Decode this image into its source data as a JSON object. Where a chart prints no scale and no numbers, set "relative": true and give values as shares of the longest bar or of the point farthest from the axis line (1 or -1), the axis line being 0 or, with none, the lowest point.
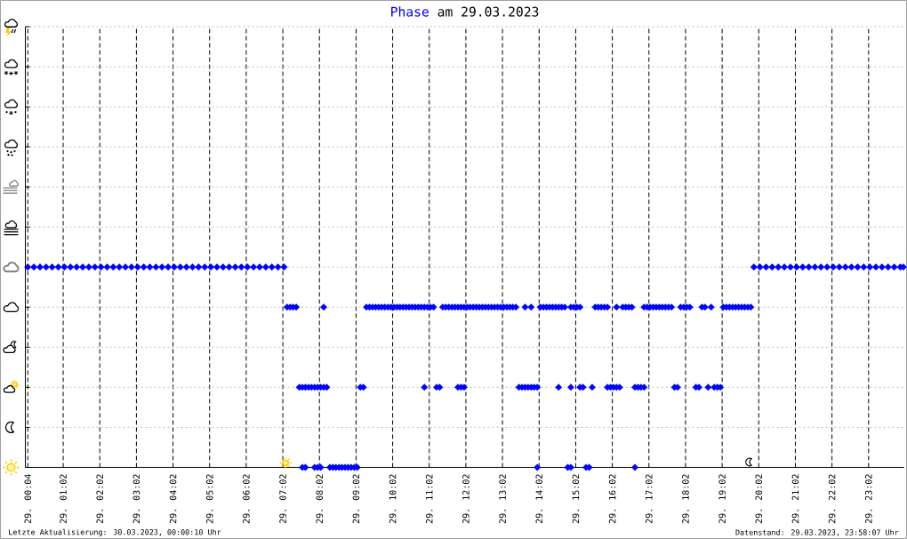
{
  "chart_data": {
    "type": "scatter",
    "title": "am 29.03.2023",
    "annotations": [
      "Letzte Aktualisierung: 30.03.2023, 00:00:10 Uhr",
      "Datenstand: 29.03.2023, 23:58:07 Uhr"
    ],
    "xlim": [
      "2023-03-29T00:00",
      "2023-03-30T00:00"
    ],
    "xticks": [
      {
        "value": "2023-03-29T00:04",
        "label": "29. 00:04"
      },
      {
        "value": "2023-03-29T01:02",
        "label": "29. 01:02"
      },
      {
        "value": "2023-03-29T02:02",
        "label": "29. 02:02"
      },
      {
        "value": "2023-03-29T03:02",
        "label": "29. 03:02"
      },
      {
        "value": "2023-03-29T04:02",
        "label": "29. 04:02"
      },
      {
        "value": "2023-03-29T05:02",
        "label": "29. 05:02"
      },
      {
        "value": "2023-03-29T06:02",
        "label": "29. 06:02"
      },
      {
        "value": "2023-03-29T07:02",
        "label": "29. 07:02"
      },
      {
        "value": "2023-03-29T08:02",
        "label": "29. 08:02"
      },
      {
        "value": "2023-03-29T09:02",
        "label": "29. 09:02"
      },
      {
        "value": "2023-03-29T10:02",
        "label": "29. 10:02"
      },
      {
        "value": "2023-03-29T11:02",
        "label": "29. 11:02"
      },
      {
        "value": "2023-03-29T12:02",
        "label": "29. 12:02"
      },
      {
        "value": "2023-03-29T13:02",
        "label": "29. 13:02"
      },
      {
        "value": "2023-03-29T14:02",
        "label": "29. 14:02"
      },
      {
        "value": "2023-03-29T15:02",
        "label": "29. 15:02"
      },
      {
        "value": "2023-03-29T16:02",
        "label": "29. 16:02"
      },
      {
        "value": "2023-03-29T17:02",
        "label": "29. 17:02"
      },
      {
        "value": "2023-03-29T18:02",
        "label": "29. 18:02"
      },
      {
        "value": "2023-03-29T19:02",
        "label": "29. 19:02"
      },
      {
        "value": "2023-03-29T20:02",
        "label": "29. 20:02"
      },
      {
        "value": "2023-03-29T21:02",
        "label": "29. 21:02"
      },
      {
        "value": "2023-03-29T22:02",
        "label": "29. 22:02"
      },
      {
        "value": "2023-03-29T23:02",
        "label": "29. 23:02"
      }
    ],
    "relative": true,
    "grid": true,
    "marker": "diamond",
    "series": [
      {
        "name": "Phase",
        "color": "#0000ff",
        "x": [
          "2023-03-29T00:04",
          "2023-03-29T00:14",
          "2023-03-29T00:24",
          "2023-03-29T00:34",
          "2023-03-29T00:44",
          "2023-03-29T00:54",
          "2023-03-29T01:04",
          "2023-03-29T01:14",
          "2023-03-29T01:24",
          "2023-03-29T01:34",
          "2023-03-29T01:44",
          "2023-03-29T01:54",
          "2023-03-29T02:04",
          "2023-03-29T02:14",
          "2023-03-29T02:24",
          "2023-03-29T02:34",
          "2023-03-29T02:44",
          "2023-03-29T02:54",
          "2023-03-29T03:04",
          "2023-03-29T03:14",
          "2023-03-29T03:24",
          "2023-03-29T03:34",
          "2023-03-29T03:44",
          "2023-03-29T03:54",
          "2023-03-29T04:04",
          "2023-03-29T04:14",
          "2023-03-29T04:24",
          "2023-03-29T04:34",
          "2023-03-29T04:44",
          "2023-03-29T04:54",
          "2023-03-29T05:04",
          "2023-03-29T05:14",
          "2023-03-29T05:24",
          "2023-03-29T05:34",
          "2023-03-29T05:44",
          "2023-03-29T05:54",
          "2023-03-29T06:04",
          "2023-03-29T06:14",
          "2023-03-29T06:24",
          "2023-03-29T06:34",
          "2023-03-29T06:44",
          "2023-03-29T06:54",
          "2023-03-29T07:04",
          "2023-03-29T07:09",
          "2023-03-29T07:14",
          "2023-03-29T07:19",
          "2023-03-29T07:24",
          "2023-03-29T07:29",
          "2023-03-29T07:34",
          "2023-03-29T07:34",
          "2023-03-29T07:39",
          "2023-03-29T07:39",
          "2023-03-29T07:44",
          "2023-03-29T07:49",
          "2023-03-29T07:54",
          "2023-03-29T07:54",
          "2023-03-29T07:59",
          "2023-03-29T07:59",
          "2023-03-29T08:04",
          "2023-03-29T08:04",
          "2023-03-29T08:09",
          "2023-03-29T08:09",
          "2023-03-29T08:14",
          "2023-03-29T08:19",
          "2023-03-29T08:24",
          "2023-03-29T08:29",
          "2023-03-29T08:34",
          "2023-03-29T08:39",
          "2023-03-29T08:44",
          "2023-03-29T08:49",
          "2023-03-29T08:54",
          "2023-03-29T08:59",
          "2023-03-29T09:04",
          "2023-03-29T09:09",
          "2023-03-29T09:14",
          "2023-03-29T09:19",
          "2023-03-29T09:24",
          "2023-03-29T09:29",
          "2023-03-29T09:34",
          "2023-03-29T09:39",
          "2023-03-29T09:44",
          "2023-03-29T09:49",
          "2023-03-29T09:54",
          "2023-03-29T09:59",
          "2023-03-29T10:04",
          "2023-03-29T10:09",
          "2023-03-29T10:14",
          "2023-03-29T10:19",
          "2023-03-29T10:24",
          "2023-03-29T10:29",
          "2023-03-29T10:34",
          "2023-03-29T10:39",
          "2023-03-29T10:44",
          "2023-03-29T10:49",
          "2023-03-29T10:54",
          "2023-03-29T10:54",
          "2023-03-29T10:59",
          "2023-03-29T11:04",
          "2023-03-29T11:09",
          "2023-03-29T11:14",
          "2023-03-29T11:19",
          "2023-03-29T11:24",
          "2023-03-29T11:29",
          "2023-03-29T11:34",
          "2023-03-29T11:39",
          "2023-03-29T11:44",
          "2023-03-29T11:49",
          "2023-03-29T11:49",
          "2023-03-29T11:54",
          "2023-03-29T11:54",
          "2023-03-29T11:59",
          "2023-03-29T11:59",
          "2023-03-29T12:04",
          "2023-03-29T12:09",
          "2023-03-29T12:14",
          "2023-03-29T12:19",
          "2023-03-29T12:24",
          "2023-03-29T12:29",
          "2023-03-29T12:34",
          "2023-03-29T12:39",
          "2023-03-29T12:44",
          "2023-03-29T12:49",
          "2023-03-29T12:54",
          "2023-03-29T12:59",
          "2023-03-29T13:04",
          "2023-03-29T13:09",
          "2023-03-29T13:14",
          "2023-03-29T13:19",
          "2023-03-29T13:24",
          "2023-03-29T13:29",
          "2023-03-29T13:34",
          "2023-03-29T13:39",
          "2023-03-29T13:39",
          "2023-03-29T13:44",
          "2023-03-29T13:49",
          "2023-03-29T13:49",
          "2023-03-29T13:54",
          "2023-03-29T13:59",
          "2023-03-29T13:59",
          "2023-03-29T14:04",
          "2023-03-29T14:09",
          "2023-03-29T14:14",
          "2023-03-29T14:19",
          "2023-03-29T14:24",
          "2023-03-29T14:29",
          "2023-03-29T14:34",
          "2023-03-29T14:34",
          "2023-03-29T14:39",
          "2023-03-29T14:44",
          "2023-03-29T14:49",
          "2023-03-29T14:54",
          "2023-03-29T14:54",
          "2023-03-29T14:54",
          "2023-03-29T14:59",
          "2023-03-29T15:04",
          "2023-03-29T15:09",
          "2023-03-29T15:09",
          "2023-03-29T15:14",
          "2023-03-29T15:19",
          "2023-03-29T15:24",
          "2023-03-29T15:29",
          "2023-03-29T15:34",
          "2023-03-29T15:39",
          "2023-03-29T15:44",
          "2023-03-29T15:49",
          "2023-03-29T15:54",
          "2023-03-29T15:54",
          "2023-03-29T15:59",
          "2023-03-29T16:04",
          "2023-03-29T16:09",
          "2023-03-29T16:09",
          "2023-03-29T16:14",
          "2023-03-29T16:19",
          "2023-03-29T16:24",
          "2023-03-29T16:29",
          "2023-03-29T16:34",
          "2023-03-29T16:39",
          "2023-03-29T16:39",
          "2023-03-29T16:44",
          "2023-03-29T16:49",
          "2023-03-29T16:54",
          "2023-03-29T16:54",
          "2023-03-29T16:59",
          "2023-03-29T17:04",
          "2023-03-29T17:09",
          "2023-03-29T17:14",
          "2023-03-29T17:19",
          "2023-03-29T17:24",
          "2023-03-29T17:29",
          "2023-03-29T17:34",
          "2023-03-29T17:39",
          "2023-03-29T17:44",
          "2023-03-29T17:49",
          "2023-03-29T17:54",
          "2023-03-29T17:59",
          "2023-03-29T18:04",
          "2023-03-29T18:09",
          "2023-03-29T18:19",
          "2023-03-29T18:24",
          "2023-03-29T18:29",
          "2023-03-29T18:34",
          "2023-03-29T18:39",
          "2023-03-29T18:44",
          "2023-03-29T18:49",
          "2023-03-29T18:54",
          "2023-03-29T18:59",
          "2023-03-29T19:04",
          "2023-03-29T19:09",
          "2023-03-29T19:14",
          "2023-03-29T19:19",
          "2023-03-29T19:24",
          "2023-03-29T19:29",
          "2023-03-29T19:34",
          "2023-03-29T19:39",
          "2023-03-29T19:44",
          "2023-03-29T19:49",
          "2023-03-29T19:54",
          "2023-03-29T20:04",
          "2023-03-29T20:14",
          "2023-03-29T20:24",
          "2023-03-29T20:34",
          "2023-03-29T20:44",
          "2023-03-29T20:54",
          "2023-03-29T21:04",
          "2023-03-29T21:14",
          "2023-03-29T21:24",
          "2023-03-29T21:34",
          "2023-03-29T21:44",
          "2023-03-29T21:54",
          "2023-03-29T22:04",
          "2023-03-29T22:14",
          "2023-03-29T22:24",
          "2023-03-29T22:34",
          "2023-03-29T22:44",
          "2023-03-29T22:54",
          "2023-03-29T23:04",
          "2023-03-29T23:14",
          "2023-03-29T23:24",
          "2023-03-29T23:34",
          "2023-03-29T23:44",
          "2023-03-29T23:54",
          "2023-03-29T23:59"
        ],
        "values": [
          1,
          1,
          1,
          1,
          1,
          1,
          1,
          1,
          1,
          1,
          1,
          1,
          1,
          1,
          1,
          1,
          1,
          1,
          1,
          1,
          1,
          1,
          1,
          1,
          1,
          1,
          1,
          1,
          1,
          1,
          1,
          1,
          1,
          1,
          1,
          1,
          1,
          1,
          1,
          1,
          1,
          1,
          1,
          0.8,
          0.8,
          0.8,
          0.8,
          0.4,
          0.4,
          0,
          0.4,
          0,
          0.4,
          0.4,
          0.4,
          0,
          0.4,
          0,
          0.4,
          0,
          0.4,
          0.8,
          0.4,
          0,
          0,
          0,
          0,
          0,
          0,
          0,
          0,
          0,
          0,
          0.4,
          0.4,
          0.8,
          0.8,
          0.8,
          0.8,
          0.8,
          0.8,
          0.8,
          0.8,
          0.8,
          0.8,
          0.8,
          0.8,
          0.8,
          0.8,
          0.8,
          0.8,
          0.8,
          0.8,
          0.8,
          0.8,
          0.4,
          0.8,
          0.8,
          0.8,
          0.4,
          0.4,
          0.8,
          0.8,
          0.8,
          0.8,
          0.8,
          0.8,
          0.4,
          0.8,
          0.4,
          0.8,
          0.4,
          0.8,
          0.8,
          0.8,
          0.8,
          0.8,
          0.8,
          0.8,
          0.8,
          0.8,
          0.8,
          0.8,
          0.8,
          0.8,
          0.8,
          0.8,
          0.8,
          0.8,
          0.4,
          0.4,
          0.4,
          0.8,
          0.4,
          0.4,
          0.8,
          0.4,
          0.4,
          0,
          0.8,
          0.8,
          0.8,
          0.8,
          0.8,
          0.8,
          0.8,
          0.4,
          0.8,
          0.8,
          0,
          0.8,
          0.4,
          0,
          0.8,
          0.8,
          0.8,
          0.4,
          0.4,
          0,
          0,
          0.4,
          0.8,
          0.8,
          0.8,
          0.8,
          0.8,
          0.4,
          0.4,
          0.4,
          0.4,
          0.8,
          0.4,
          0.8,
          0.8,
          0.8,
          0.8,
          0.4,
          0,
          0.4,
          0.4,
          0.4,
          0.8,
          0.8,
          0.8,
          0.8,
          0.8,
          0.8,
          0.8,
          0.8,
          0.8,
          0.8,
          0.4,
          0.4,
          0.8,
          0.8,
          0.8,
          0.8,
          0.4,
          0.4,
          0.8,
          0.8,
          0.4,
          0.8,
          0.4,
          0.4,
          0.4,
          0.8,
          0.8,
          0.8,
          0.8,
          0.8,
          0.8,
          0.8,
          0.8,
          0.8,
          0.8,
          1,
          1,
          1,
          1,
          1,
          1,
          1,
          1,
          1,
          1,
          1,
          1,
          1,
          1,
          1,
          1,
          1,
          1,
          1,
          1,
          1,
          1,
          1,
          1,
          1,
          1
        ]
      }
    ]
  }
}
